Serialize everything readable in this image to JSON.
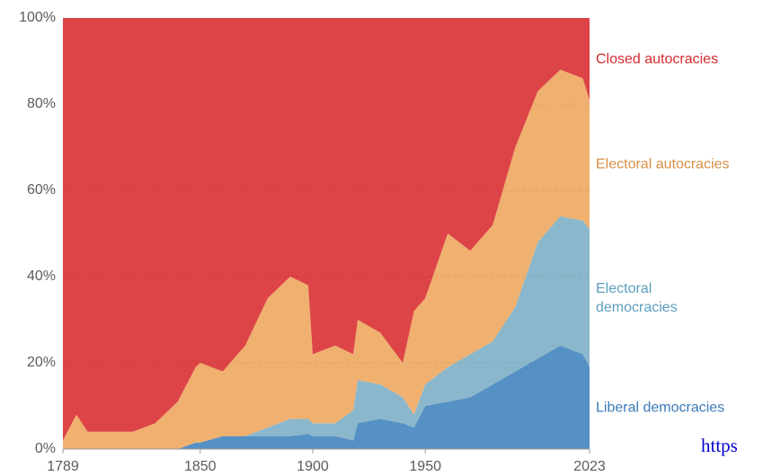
{
  "chart_data": {
    "type": "stacked_area",
    "x": [
      1789,
      1795,
      1800,
      1810,
      1820,
      1830,
      1840,
      1848,
      1850,
      1860,
      1870,
      1880,
      1890,
      1898,
      1900,
      1910,
      1918,
      1920,
      1930,
      1940,
      1945,
      1950,
      1960,
      1970,
      1980,
      1990,
      2000,
      2010,
      2020,
      2023
    ],
    "series": [
      {
        "name": "Liberal democracies",
        "color": "#5591c4",
        "label_color": "#3b7bb8",
        "values": [
          0,
          0,
          0,
          0,
          0,
          0,
          0,
          1.5,
          1.5,
          3,
          3,
          3,
          3,
          3.5,
          3,
          3,
          2,
          6,
          7,
          6,
          5,
          10,
          11,
          12,
          15,
          18,
          21,
          24,
          22,
          19
        ]
      },
      {
        "name": "Electoral democracies",
        "color": "#8ab7cb",
        "label_color": "#5d9fbe",
        "values": [
          0,
          0,
          0,
          0,
          0,
          0,
          0,
          0,
          0,
          0,
          0,
          2,
          4,
          3.5,
          3,
          3,
          7,
          10,
          8,
          6,
          3,
          5,
          8,
          10,
          10,
          15,
          27,
          30,
          31,
          32
        ]
      },
      {
        "name": "Electoral autocracies",
        "color": "#f0b070",
        "label_color": "#d98f45",
        "values": [
          2,
          8,
          4,
          4,
          4,
          6,
          11,
          17.5,
          18.5,
          15,
          21,
          30,
          33,
          31,
          16,
          18,
          13,
          14,
          12,
          8,
          24,
          20,
          31,
          24,
          27,
          37,
          35,
          34,
          33,
          30
        ]
      },
      {
        "name": "Closed autocracies",
        "color": "#dd4447",
        "label_color": "#d42a2d",
        "values": [
          98,
          92,
          96,
          96,
          96,
          94,
          89,
          81,
          80,
          82,
          76,
          65,
          60,
          62,
          78,
          76,
          78,
          70,
          73,
          80,
          68,
          65,
          50,
          54,
          48,
          30,
          17,
          12,
          14,
          19
        ]
      }
    ],
    "xlim": [
      1789,
      2023
    ],
    "xticks": [
      1789,
      1850,
      1900,
      1950,
      2023
    ],
    "ylim": [
      0,
      100
    ],
    "yticks": [
      {
        "value": 0,
        "label": "0%"
      },
      {
        "value": 20,
        "label": "20%"
      },
      {
        "value": 40,
        "label": "40%"
      },
      {
        "value": 60,
        "label": "60%"
      },
      {
        "value": 80,
        "label": "80%"
      },
      {
        "value": 100,
        "label": "100%"
      }
    ],
    "grid": true
  },
  "footer_text": "https"
}
